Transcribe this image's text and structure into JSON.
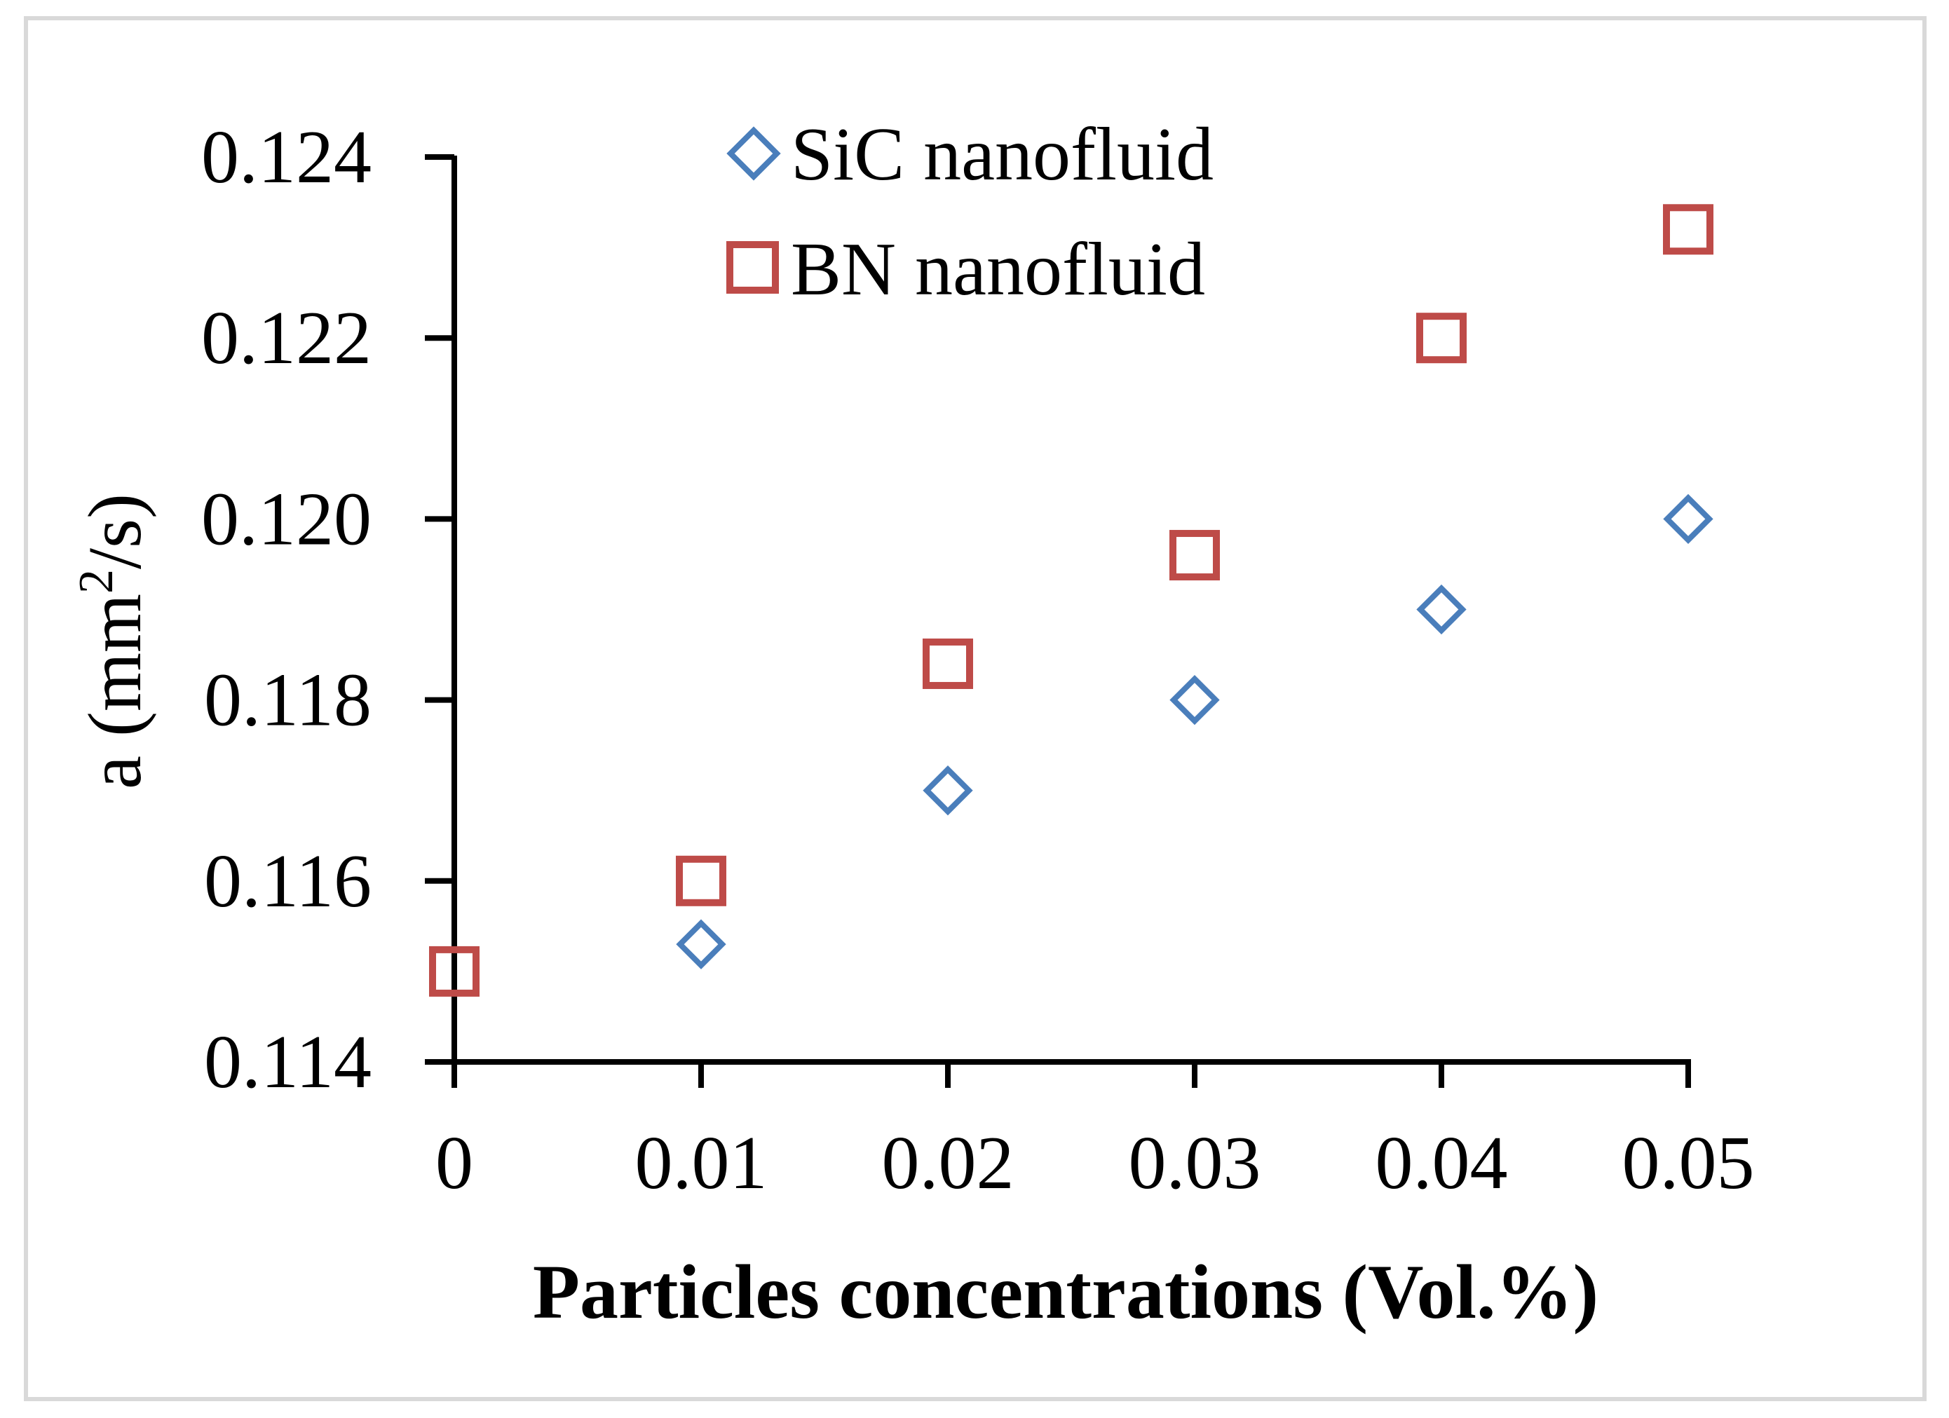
{
  "chart_data": {
    "type": "scatter",
    "title": "",
    "xlabel": "Particles concentrations (Vol.%)",
    "ylabel": {
      "prefix": "a (mm",
      "sup": "2",
      "suffix": "/s)"
    },
    "xlim": [
      0,
      0.05
    ],
    "ylim": [
      0.114,
      0.124
    ],
    "x_ticks": [
      0,
      0.01,
      0.02,
      0.03,
      0.04,
      0.05
    ],
    "x_tick_labels": [
      "0",
      "0.01",
      "0.02",
      "0.03",
      "0.04",
      "0.05"
    ],
    "y_ticks": [
      0.114,
      0.116,
      0.118,
      0.12,
      0.122,
      0.124
    ],
    "y_tick_labels": [
      "0.114",
      "0.116",
      "0.118",
      "0.120",
      "0.122",
      "0.124"
    ],
    "grid": false,
    "legend_position": "top-center",
    "series": [
      {
        "name": "SiC nanofluid",
        "marker": "diamond",
        "color": "#4a7ebb",
        "x": [
          0.01,
          0.02,
          0.03,
          0.04,
          0.05
        ],
        "values": [
          0.1153,
          0.117,
          0.118,
          0.119,
          0.12
        ]
      },
      {
        "name": "BN nanofluid",
        "marker": "square",
        "color": "#be4b48",
        "x": [
          0,
          0.01,
          0.02,
          0.03,
          0.04,
          0.05
        ],
        "values": [
          0.115,
          0.116,
          0.1184,
          0.1196,
          0.122,
          0.1232
        ]
      }
    ],
    "frame_color": "#d9d9d9"
  }
}
